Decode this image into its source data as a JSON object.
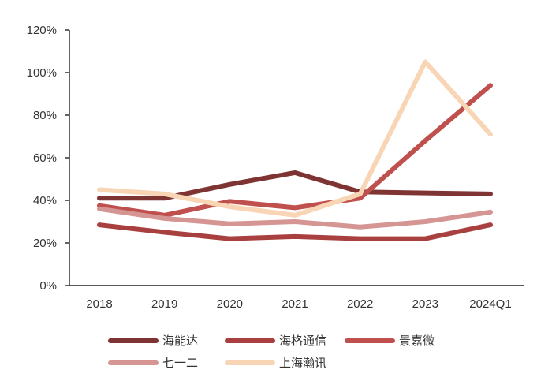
{
  "chart_data": {
    "type": "line",
    "title": "",
    "xlabel": "",
    "ylabel": "",
    "categories": [
      "2018",
      "2019",
      "2020",
      "2021",
      "2022",
      "2023",
      "2024Q1"
    ],
    "ylim": [
      0,
      120
    ],
    "yticks": [
      0,
      20,
      40,
      60,
      80,
      100,
      120
    ],
    "ytick_labels": [
      "0%",
      "20%",
      "40%",
      "60%",
      "80%",
      "100%",
      "120%"
    ],
    "grid": false,
    "legend_position": "bottom",
    "series": [
      {
        "name": "海能达",
        "color": "#7e3433",
        "values": [
          41,
          41,
          47.5,
          53,
          44,
          43.5,
          43
        ]
      },
      {
        "name": "海格通信",
        "color": "#a8403f",
        "values": [
          28.5,
          25,
          22,
          23,
          22,
          22,
          28.5
        ]
      },
      {
        "name": "景嘉微",
        "color": "#c0504d",
        "values": [
          37.5,
          33,
          39.5,
          36.5,
          41,
          68,
          94
        ]
      },
      {
        "name": "七一二",
        "color": "#d49593",
        "values": [
          36,
          31.5,
          29,
          30,
          27.5,
          30,
          34.5
        ]
      },
      {
        "name": "上海瀚讯",
        "color": "#f8d5b5",
        "values": [
          45,
          43,
          37,
          33,
          43,
          105,
          71
        ]
      }
    ]
  }
}
